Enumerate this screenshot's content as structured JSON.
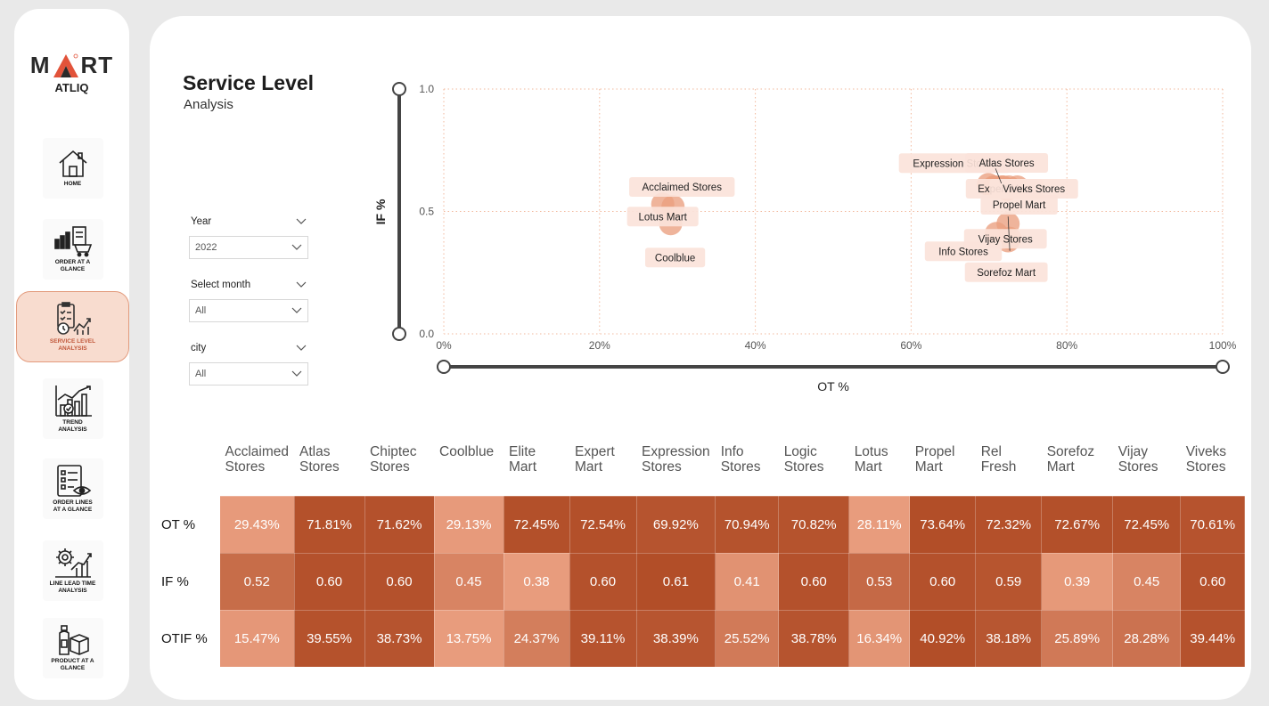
{
  "brand": {
    "logo_left": "M",
    "logo_right": "RT",
    "logo_sub": "ATLIQ"
  },
  "nav": [
    {
      "label": "HOME",
      "icon": "home-icon"
    },
    {
      "label": "ORDER AT A GLANCE",
      "icon": "order-glance-icon"
    },
    {
      "label": "SERVICE LEVEL ANALYSIS",
      "icon": "service-level-icon",
      "active": true
    },
    {
      "label": "TREND ANALYSIS",
      "icon": "trend-icon"
    },
    {
      "label": "ORDER LINES AT A GLANCE",
      "icon": "order-lines-icon"
    },
    {
      "label": "LINE LEAD TIME ANALYSIS",
      "icon": "lead-time-icon"
    },
    {
      "label": "PRODUCT AT A GLANCE",
      "icon": "product-icon"
    }
  ],
  "page": {
    "title": "Service Level",
    "subtitle": "Analysis"
  },
  "filters": [
    {
      "label": "Year",
      "value": "2022"
    },
    {
      "label": "Select month",
      "value": "All"
    },
    {
      "label": "city",
      "value": "All"
    }
  ],
  "colors": {
    "accent": "#e39b7d",
    "bubble": "#eb9f7f",
    "label_bg": "#fbe3da",
    "axis": "#444444",
    "grid": "#f2b89c"
  },
  "chart_data": {
    "type": "scatter",
    "xlabel": "OT %",
    "ylabel": "IF %",
    "xlim": [
      0,
      100
    ],
    "ylim": [
      0,
      1
    ],
    "x_ticks": [
      "0%",
      "20%",
      "40%",
      "60%",
      "80%",
      "100%"
    ],
    "y_ticks": [
      "0.0",
      "0.5",
      "1.0"
    ],
    "points": [
      {
        "name": "Acclaimed Stores",
        "x": 29.43,
        "y": 0.52
      },
      {
        "name": "Atlas Stores",
        "x": 71.81,
        "y": 0.6
      },
      {
        "name": "Chiptec Stores",
        "x": 71.62,
        "y": 0.6
      },
      {
        "name": "Coolblue",
        "x": 29.13,
        "y": 0.45
      },
      {
        "name": "Elite Mart",
        "x": 72.45,
        "y": 0.38
      },
      {
        "name": "Expert Mart",
        "x": 72.54,
        "y": 0.6
      },
      {
        "name": "Expression Stores",
        "x": 69.92,
        "y": 0.61
      },
      {
        "name": "Info Stores",
        "x": 70.94,
        "y": 0.41
      },
      {
        "name": "Logic Stores",
        "x": 70.82,
        "y": 0.6
      },
      {
        "name": "Lotus Mart",
        "x": 28.11,
        "y": 0.53
      },
      {
        "name": "Propel Mart",
        "x": 73.64,
        "y": 0.6
      },
      {
        "name": "Rel Fresh",
        "x": 72.32,
        "y": 0.59
      },
      {
        "name": "Sorefoz Mart",
        "x": 72.67,
        "y": 0.39
      },
      {
        "name": "Vijay Stores",
        "x": 72.45,
        "y": 0.45
      },
      {
        "name": "Viveks Stores",
        "x": 70.61,
        "y": 0.6
      }
    ],
    "visible_labels": [
      "Acclaimed Stores",
      "Lotus Mart",
      "Coolblue",
      "Expression Stores",
      "Atlas Stores",
      "Expert Mart",
      "Viveks Stores",
      "Info Stores",
      "Propel Mart",
      "Vijay Stores",
      "Sorefoz Mart"
    ]
  },
  "matrix": {
    "columns": [
      "Acclaimed Stores",
      "Atlas Stores",
      "Chiptec Stores",
      "Coolblue",
      "Elite Mart",
      "Expert Mart",
      "Expression Stores",
      "Info Stores",
      "Logic Stores",
      "Lotus Mart",
      "Propel Mart",
      "Rel Fresh",
      "Sorefoz Mart",
      "Vijay Stores",
      "Viveks Stores"
    ],
    "rows": [
      {
        "label": "OT %",
        "values": [
          "29.43%",
          "71.81%",
          "71.62%",
          "29.13%",
          "72.45%",
          "72.54%",
          "69.92%",
          "70.94%",
          "70.82%",
          "28.11%",
          "73.64%",
          "72.32%",
          "72.67%",
          "72.45%",
          "70.61%"
        ],
        "nums": [
          29.43,
          71.81,
          71.62,
          29.13,
          72.45,
          72.54,
          69.92,
          70.94,
          70.82,
          28.11,
          73.64,
          72.32,
          72.67,
          72.45,
          70.61
        ]
      },
      {
        "label": "IF %",
        "values": [
          "0.52",
          "0.60",
          "0.60",
          "0.45",
          "0.38",
          "0.60",
          "0.61",
          "0.41",
          "0.60",
          "0.53",
          "0.60",
          "0.59",
          "0.39",
          "0.45",
          "0.60"
        ],
        "nums": [
          0.52,
          0.6,
          0.6,
          0.45,
          0.38,
          0.6,
          0.61,
          0.41,
          0.6,
          0.53,
          0.6,
          0.59,
          0.39,
          0.45,
          0.6
        ]
      },
      {
        "label": "OTIF %",
        "values": [
          "15.47%",
          "39.55%",
          "38.73%",
          "13.75%",
          "24.37%",
          "39.11%",
          "38.39%",
          "25.52%",
          "38.78%",
          "16.34%",
          "40.92%",
          "38.18%",
          "25.89%",
          "28.28%",
          "39.44%"
        ],
        "nums": [
          15.47,
          39.55,
          38.73,
          13.75,
          24.37,
          39.11,
          38.39,
          25.52,
          38.78,
          16.34,
          40.92,
          38.18,
          25.89,
          28.28,
          39.44
        ]
      }
    ]
  }
}
